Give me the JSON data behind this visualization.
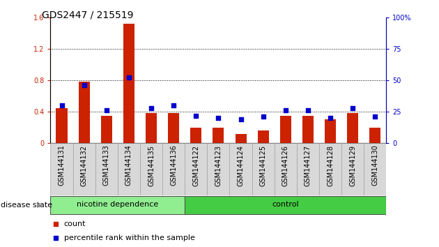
{
  "title": "GDS2447 / 215519",
  "samples": [
    "GSM144131",
    "GSM144132",
    "GSM144133",
    "GSM144134",
    "GSM144135",
    "GSM144136",
    "GSM144122",
    "GSM144123",
    "GSM144124",
    "GSM144125",
    "GSM144126",
    "GSM144127",
    "GSM144128",
    "GSM144129",
    "GSM144130"
  ],
  "counts": [
    0.45,
    0.78,
    0.35,
    1.52,
    0.38,
    0.38,
    0.2,
    0.2,
    0.12,
    0.16,
    0.35,
    0.35,
    0.3,
    0.38,
    0.2
  ],
  "percentile_ranks": [
    30,
    46,
    26,
    52,
    28,
    30,
    22,
    20,
    19,
    21,
    26,
    26,
    20,
    28,
    21
  ],
  "groups": [
    "nicotine dependence",
    "nicotine dependence",
    "nicotine dependence",
    "nicotine dependence",
    "nicotine dependence",
    "nicotine dependence",
    "control",
    "control",
    "control",
    "control",
    "control",
    "control",
    "control",
    "control",
    "control"
  ],
  "bar_color": "#CC2200",
  "dot_color": "#0000CC",
  "ylim_left": [
    0,
    1.6
  ],
  "ylim_right": [
    0,
    100
  ],
  "yticks_left": [
    0,
    0.4,
    0.8,
    1.2,
    1.6
  ],
  "yticks_right": [
    0,
    25,
    50,
    75,
    100
  ],
  "plot_bg": "#FFFFFF",
  "title_fontsize": 10,
  "tick_fontsize": 7,
  "label_fontsize": 8,
  "nicotine_color": "#90EE90",
  "control_color": "#44CC44",
  "sample_bg_color": "#D8D8D8",
  "bar_width": 0.5
}
